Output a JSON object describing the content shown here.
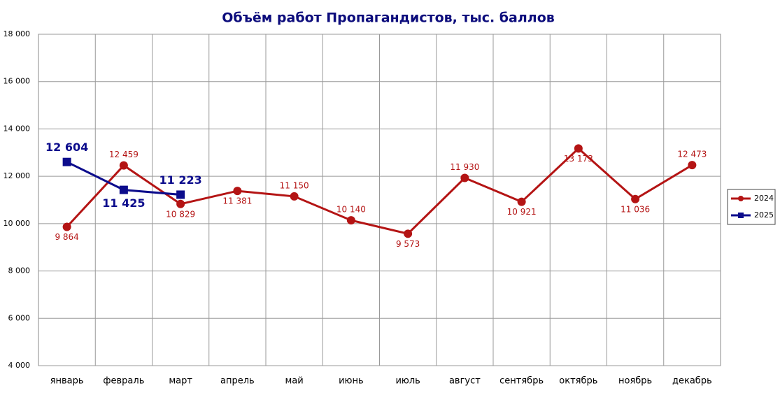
{
  "chart_data": {
    "type": "line",
    "title": "Объём работ Пропагандистов, тыс. баллов",
    "categories": [
      "январь",
      "февраль",
      "март",
      "апрель",
      "май",
      "июнь",
      "июль",
      "август",
      "сентябрь",
      "октябрь",
      "ноябрь",
      "декабрь"
    ],
    "series": [
      {
        "name": "2024",
        "color": "#b41414",
        "marker": "circle",
        "values": [
          9864,
          12459,
          10829,
          11381,
          11150,
          10140,
          9573,
          11930,
          10921,
          13173,
          11036,
          12473
        ],
        "value_labels": [
          "9 864",
          "12 459",
          "10 829",
          "11 381",
          "11 150",
          "10 140",
          "9 573",
          "11 930",
          "10 921",
          "13 173",
          "11 036",
          "12 473"
        ]
      },
      {
        "name": "2025",
        "color": "#0c0c8c",
        "marker": "square",
        "values": [
          12604,
          11425,
          11223,
          null,
          null,
          null,
          null,
          null,
          null,
          null,
          null,
          null
        ],
        "value_labels": [
          "12 604",
          "11 425",
          "11 223",
          null,
          null,
          null,
          null,
          null,
          null,
          null,
          null,
          null
        ]
      }
    ],
    "ylim": [
      4000,
      18000
    ],
    "yticks": [
      {
        "value": 4000,
        "label": "4 000"
      },
      {
        "value": 6000,
        "label": "6 000"
      },
      {
        "value": 8000,
        "label": "8 000"
      },
      {
        "value": 10000,
        "label": "10 000"
      },
      {
        "value": 12000,
        "label": "12 000"
      },
      {
        "value": 14000,
        "label": "14 000"
      },
      {
        "value": 16000,
        "label": "16 000"
      },
      {
        "value": 18000,
        "label": "18 000"
      }
    ],
    "grid": true,
    "legend": "right"
  }
}
